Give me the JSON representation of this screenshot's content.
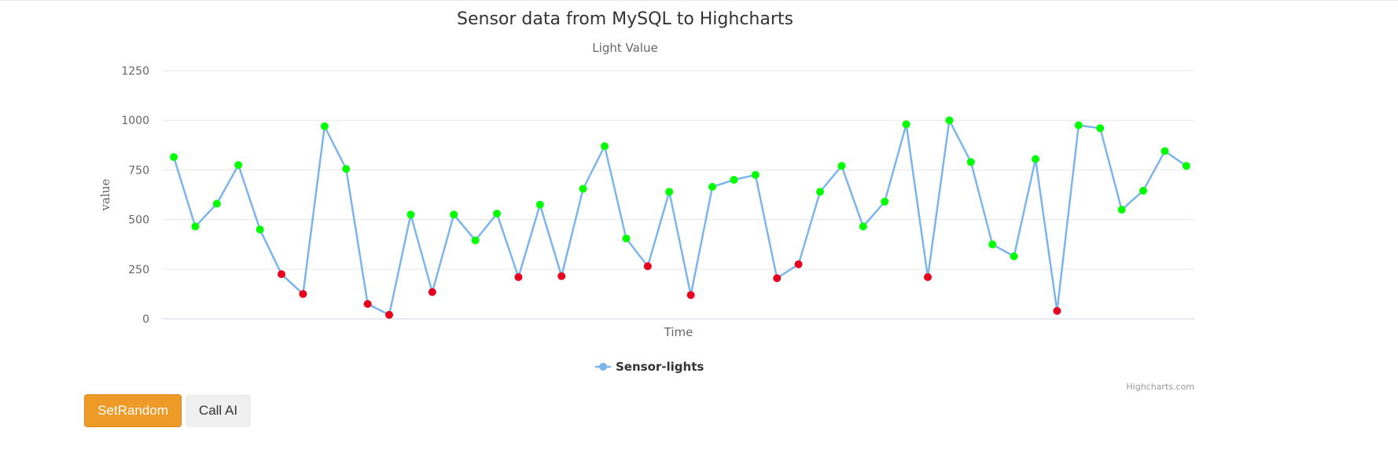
{
  "chart_data": {
    "type": "line",
    "title": "Sensor data from MySQL to Highcharts",
    "subtitle": "Light Value",
    "xlabel": "Time",
    "ylabel": "value",
    "ylim": [
      0,
      1250
    ],
    "yticks": [
      "0",
      "250",
      "500",
      "750",
      "1000",
      "1250"
    ],
    "grid": true,
    "legend_position": "bottom-center",
    "threshold": 300,
    "series": [
      {
        "name": "Sensor-lights",
        "line_color": "#7cb5ec",
        "high_color": "#00ff00",
        "low_color": "#e8001c",
        "values": [
          815,
          465,
          580,
          775,
          450,
          225,
          125,
          970,
          755,
          75,
          20,
          525,
          135,
          525,
          395,
          530,
          210,
          575,
          215,
          655,
          870,
          405,
          265,
          640,
          120,
          665,
          700,
          725,
          205,
          275,
          640,
          770,
          465,
          590,
          980,
          210,
          1000,
          790,
          375,
          315,
          805,
          40,
          975,
          960,
          550,
          645,
          845,
          770
        ]
      }
    ]
  },
  "credits": "Highcharts.com",
  "buttons": {
    "set_random": "SetRandom",
    "call_ai": "Call AI"
  }
}
